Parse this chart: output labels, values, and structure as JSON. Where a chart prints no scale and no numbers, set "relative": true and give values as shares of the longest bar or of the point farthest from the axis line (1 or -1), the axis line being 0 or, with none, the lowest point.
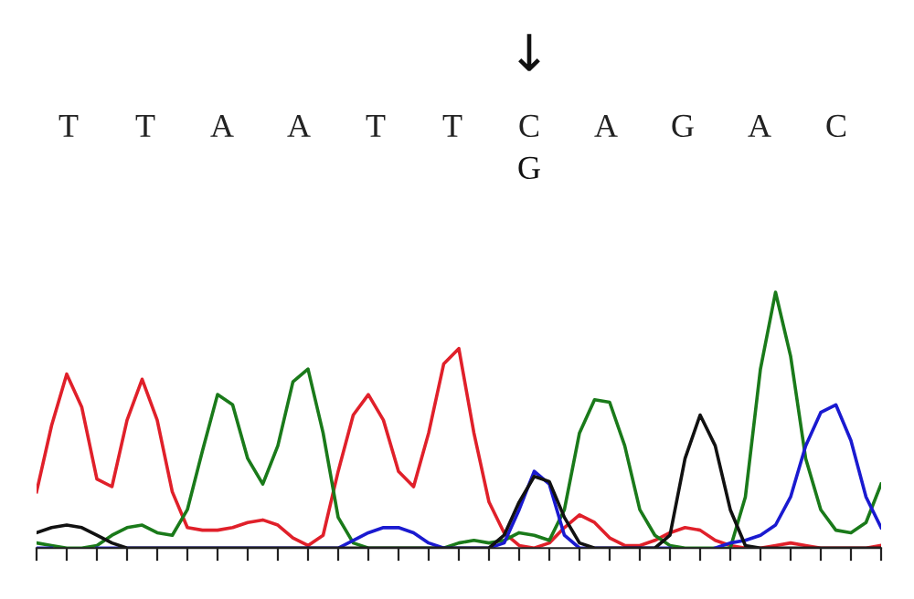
{
  "chart_data": {
    "type": "line",
    "relative": true,
    "categories": [
      null,
      null,
      null,
      null,
      null,
      null,
      null,
      null,
      null,
      null,
      null,
      null,
      null,
      null,
      null,
      null,
      null,
      null,
      null,
      null,
      null,
      null,
      null,
      null,
      null,
      null,
      null,
      null,
      null,
      null,
      null,
      null,
      null,
      null,
      null,
      null,
      null,
      null,
      null,
      null,
      null,
      null,
      null,
      null,
      null,
      null,
      null,
      null,
      null,
      null,
      null,
      null,
      null,
      null,
      null,
      null,
      null
    ],
    "series": [
      {
        "color": "#e0202a",
        "values": [
          0.22,
          0.48,
          0.68,
          0.55,
          0.27,
          0.24,
          0.5,
          0.66,
          0.5,
          0.22,
          0.08,
          0.07,
          0.07,
          0.08,
          0.1,
          0.11,
          0.09,
          0.04,
          0.01,
          0.05,
          0.3,
          0.52,
          0.6,
          0.5,
          0.3,
          0.24,
          0.45,
          0.72,
          0.78,
          0.45,
          0.18,
          0.06,
          0.01,
          0,
          0.02,
          0.08,
          0.13,
          0.1,
          0.04,
          0.01,
          0.01,
          0.03,
          0.06,
          0.08,
          0.07,
          0.03,
          0.01,
          0,
          0,
          0.01,
          0.02,
          0.01,
          0,
          0,
          0,
          0,
          0.01
        ]
      },
      {
        "color": "#1a7a1a",
        "values": [
          0.02,
          0.01,
          0,
          0,
          0.01,
          0.05,
          0.08,
          0.09,
          0.06,
          0.05,
          0.15,
          0.38,
          0.6,
          0.56,
          0.35,
          0.25,
          0.4,
          0.65,
          0.7,
          0.45,
          0.12,
          0.02,
          0,
          0,
          0,
          0,
          0,
          0,
          0.02,
          0.03,
          0.02,
          0.03,
          0.06,
          0.05,
          0.03,
          0.15,
          0.45,
          0.58,
          0.57,
          0.4,
          0.15,
          0.05,
          0.01,
          0,
          0,
          0,
          0,
          0.2,
          0.7,
          1,
          0.75,
          0.35,
          0.15,
          0.07,
          0.06,
          0.1,
          0.25
        ]
      },
      {
        "color": "#1a1ad0",
        "values": [
          0,
          0,
          null,
          null,
          0,
          0,
          0,
          0,
          0,
          0,
          0,
          0,
          0,
          0,
          0,
          0,
          0,
          0,
          0,
          0,
          0,
          0.03,
          0.06,
          0.08,
          0.08,
          0.06,
          0.02,
          0,
          0,
          0,
          0,
          0.02,
          0.15,
          0.3,
          0.25,
          0.05,
          0,
          0,
          0,
          0,
          0,
          0,
          0,
          null,
          null,
          0,
          0.02,
          0.03,
          0.05,
          0.09,
          0.2,
          0.4,
          0.53,
          0.56,
          0.42,
          0.2,
          0.08
        ]
      },
      {
        "color": "#111111",
        "values": [
          0.06,
          0.08,
          0.09,
          0.08,
          0.05,
          0.02,
          0,
          0,
          0,
          0,
          0,
          0,
          0,
          0,
          0,
          0,
          0,
          0,
          0,
          0,
          0,
          0,
          0,
          0,
          0,
          0,
          0,
          0,
          0,
          0,
          0,
          0.05,
          0.18,
          0.28,
          0.26,
          0.12,
          0.02,
          0,
          0,
          0,
          0,
          0,
          0.05,
          0.35,
          0.52,
          0.4,
          0.15,
          0.01,
          0,
          0,
          0,
          0,
          0,
          0,
          0,
          0,
          0
        ]
      }
    ],
    "annotations": [
      "T",
      "T",
      "A",
      "A",
      "T",
      "T",
      "C",
      "A",
      "G",
      "A",
      "C",
      "↓",
      "G"
    ]
  }
}
